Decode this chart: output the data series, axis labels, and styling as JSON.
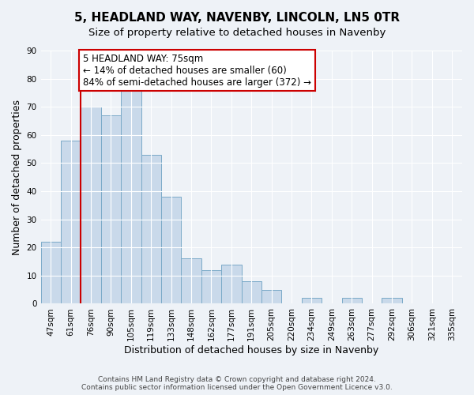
{
  "title": "5, HEADLAND WAY, NAVENBY, LINCOLN, LN5 0TR",
  "subtitle": "Size of property relative to detached houses in Navenby",
  "xlabel": "Distribution of detached houses by size in Navenby",
  "ylabel": "Number of detached properties",
  "bar_labels": [
    "47sqm",
    "61sqm",
    "76sqm",
    "90sqm",
    "105sqm",
    "119sqm",
    "133sqm",
    "148sqm",
    "162sqm",
    "177sqm",
    "191sqm",
    "205sqm",
    "220sqm",
    "234sqm",
    "249sqm",
    "263sqm",
    "277sqm",
    "292sqm",
    "306sqm",
    "321sqm",
    "335sqm"
  ],
  "bar_values": [
    22,
    58,
    70,
    67,
    76,
    53,
    38,
    16,
    12,
    14,
    8,
    5,
    0,
    2,
    0,
    2,
    0,
    2,
    0,
    0,
    0
  ],
  "bar_color": "#c9d9ea",
  "bar_edge_color": "#7aaac8",
  "highlight_bar_idx": 2,
  "highlight_color": "#cc0000",
  "ylim": [
    0,
    90
  ],
  "yticks": [
    0,
    10,
    20,
    30,
    40,
    50,
    60,
    70,
    80,
    90
  ],
  "annotation_title": "5 HEADLAND WAY: 75sqm",
  "annotation_line1": "← 14% of detached houses are smaller (60)",
  "annotation_line2": "84% of semi-detached houses are larger (372) →",
  "footer1": "Contains HM Land Registry data © Crown copyright and database right 2024.",
  "footer2": "Contains public sector information licensed under the Open Government Licence v3.0.",
  "title_fontsize": 11,
  "subtitle_fontsize": 9.5,
  "axis_label_fontsize": 9,
  "tick_fontsize": 7.5,
  "annotation_fontsize": 8.5,
  "footer_fontsize": 6.5,
  "background_color": "#eef2f7"
}
